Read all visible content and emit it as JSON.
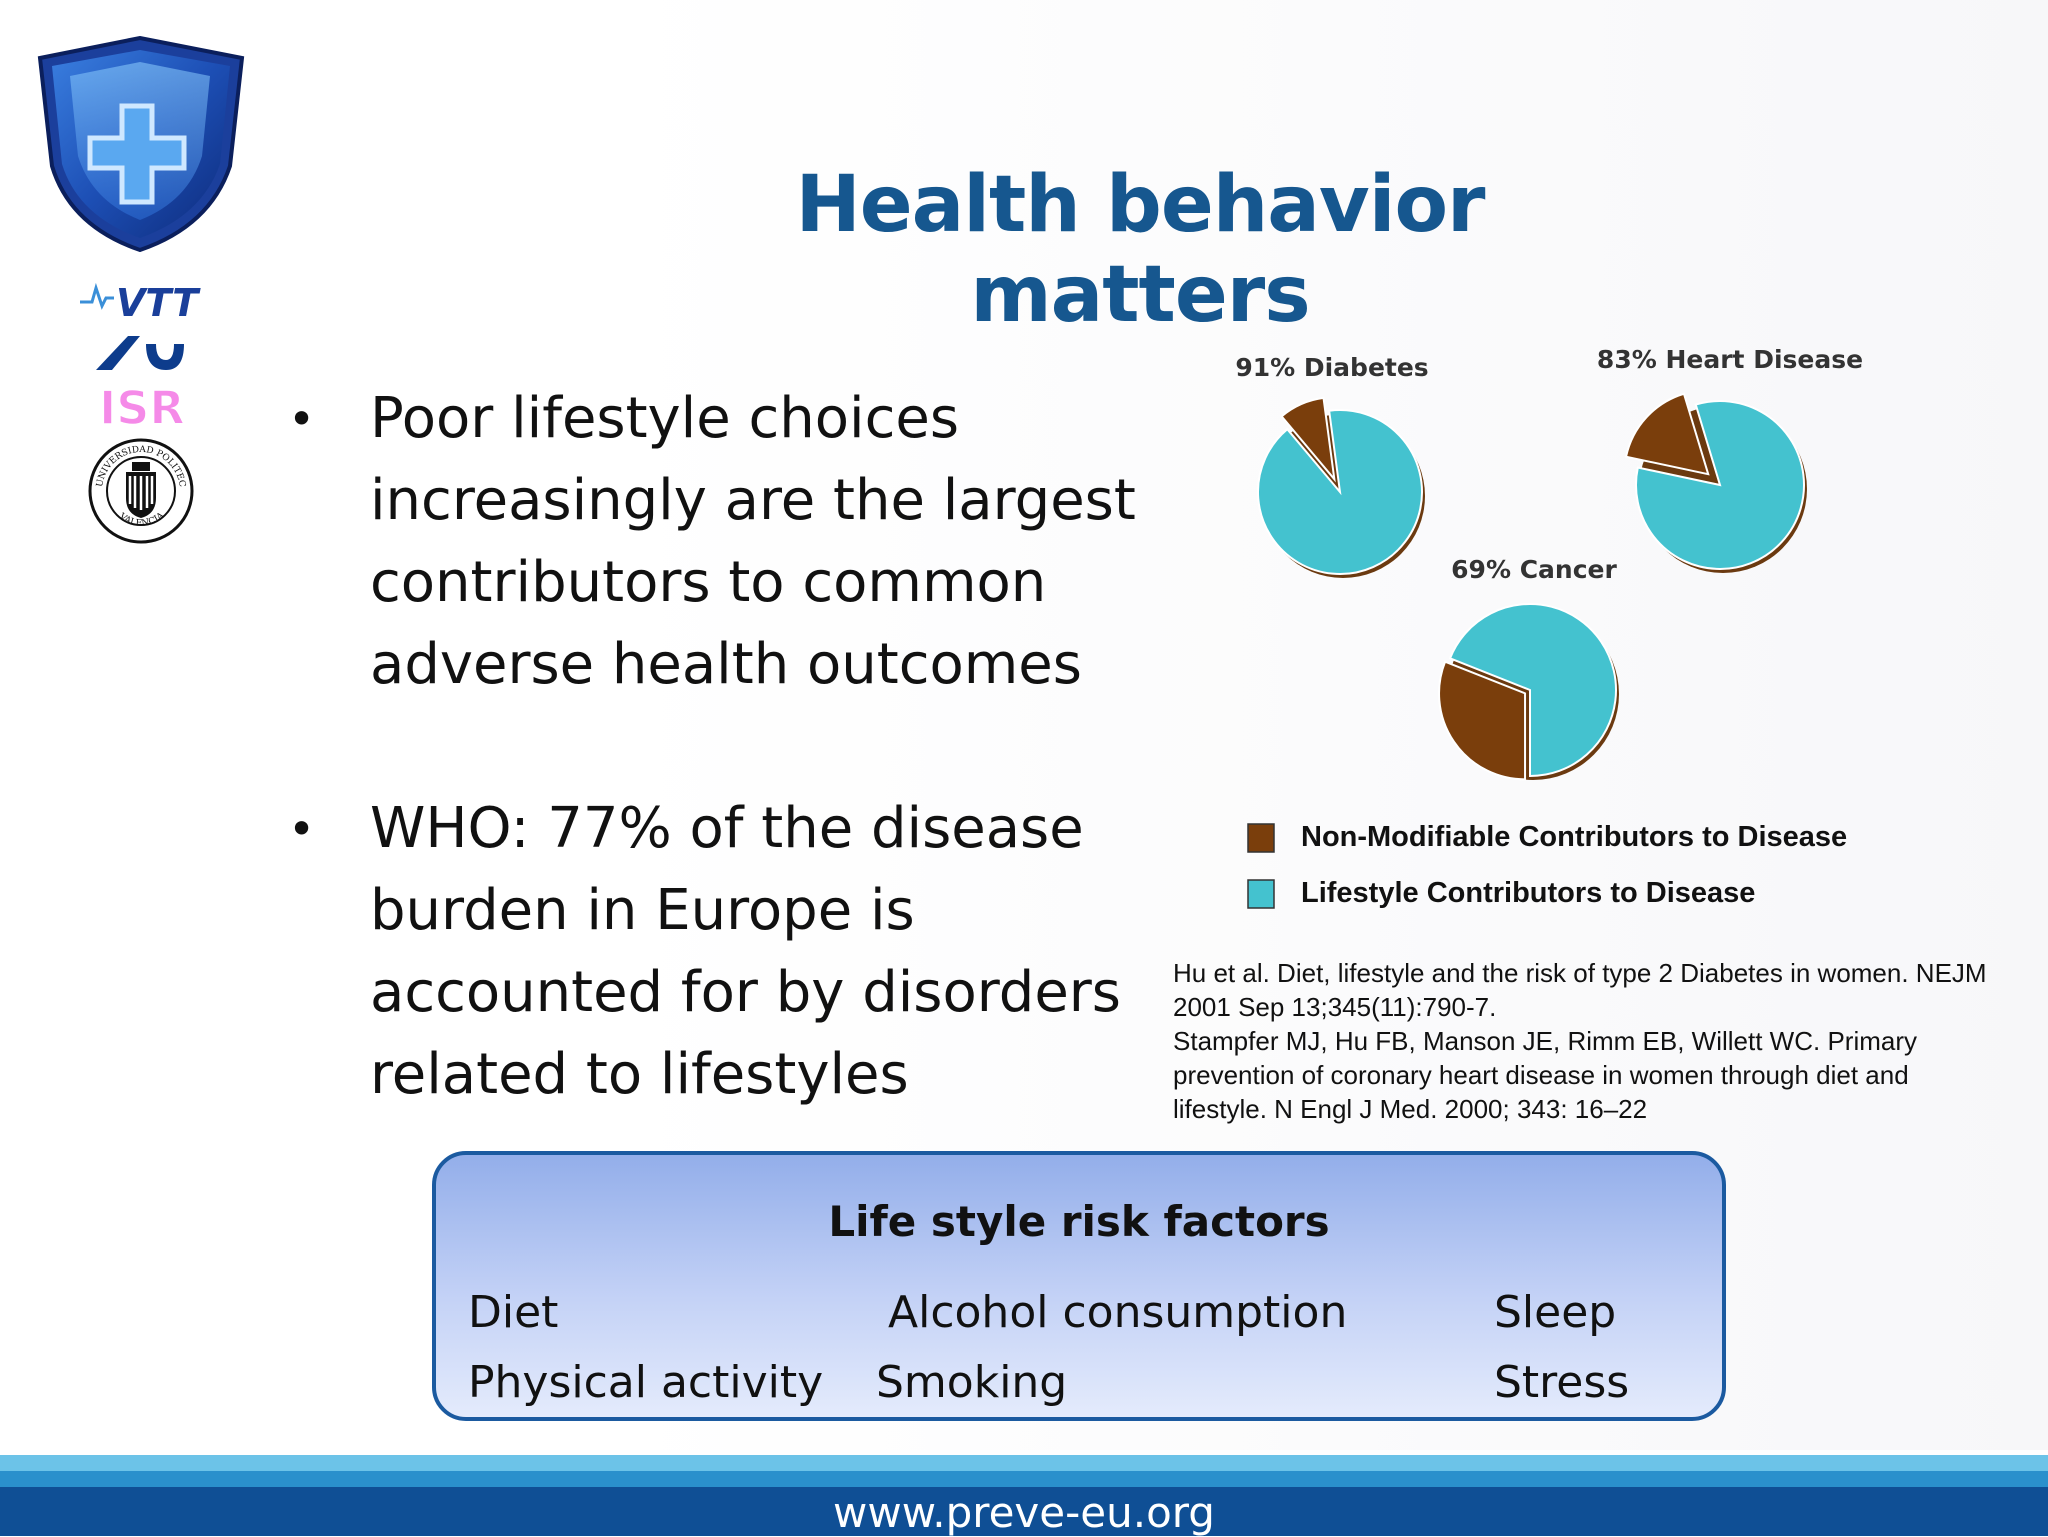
{
  "title": "Health behavior matters",
  "bullets": [
    "Poor lifestyle choices increasingly are the largest contributors to common adverse health outcomes",
    "WHO: 77% of the disease burden in Europe is accounted for by disorders related to lifestyles"
  ],
  "chart_data": {
    "type": "pie",
    "charts": [
      {
        "label": "91% Diabetes",
        "lifestyle_pct": 91,
        "non_modifiable_pct": 9
      },
      {
        "label": "83% Heart Disease",
        "lifestyle_pct": 83,
        "non_modifiable_pct": 17
      },
      {
        "label": "69% Cancer",
        "lifestyle_pct": 69,
        "non_modifiable_pct": 31
      }
    ],
    "legend": [
      {
        "label": "Non-Modifiable Contributors to Disease",
        "color": "#7a3e0c"
      },
      {
        "label": "Lifestyle Contributors to Disease",
        "color": "#44c2cf"
      }
    ],
    "colors": {
      "non_modifiable": "#7a3e0c",
      "lifestyle": "#44c2cf"
    }
  },
  "references": [
    "Hu et al. Diet, lifestyle and the risk of type 2 Diabetes in women. NEJM 2001 Sep 13;345(11):790-7.",
    "Stampfer MJ, Hu FB, Manson JE, Rimm EB, Willett WC. Primary prevention of coronary heart disease in women through diet and lifestyle. N Engl J Med. 2000; 343: 16–22"
  ],
  "risk_box": {
    "title": "Life style risk factors",
    "col1": [
      "Diet",
      "Physical activity"
    ],
    "col2": [
      "Alcohol consumption",
      "Smoking"
    ],
    "col3": [
      "Sleep",
      "Stress"
    ]
  },
  "logos": {
    "vtt": "VTT",
    "isr": "ISR",
    "upv_top": "UNIVERSIDAD POLITECNICA",
    "upv_bottom": "VALENCIA"
  },
  "footer": {
    "url": "www.preve-eu.org"
  }
}
